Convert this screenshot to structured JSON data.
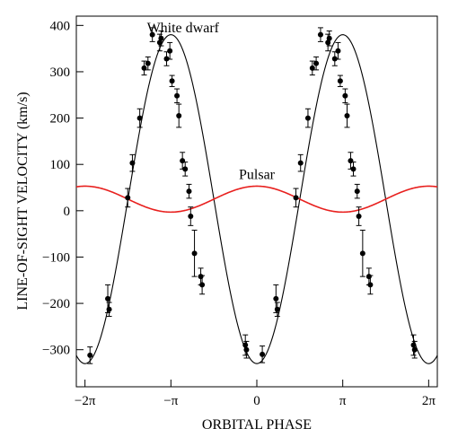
{
  "chart_data": {
    "type": "scatter",
    "xlabel": "ORBITAL PHASE",
    "ylabel": "LINE-OF-SIGHT VELOCITY (km/s)",
    "xlim": [
      -6.6,
      6.6
    ],
    "ylim": [
      -380,
      420
    ],
    "x_ticks": [
      {
        "value": -6.2832,
        "label": "−2π"
      },
      {
        "value": -3.1416,
        "label": "−π"
      },
      {
        "value": 0,
        "label": "0"
      },
      {
        "value": 3.1416,
        "label": "π"
      },
      {
        "value": 6.2832,
        "label": "2π"
      }
    ],
    "y_ticks": [
      -300,
      -200,
      -100,
      0,
      100,
      200,
      300,
      400
    ],
    "grid": false,
    "series": [
      {
        "name": "White dwarf",
        "kind": "curve",
        "color": "#000000",
        "mean": 25,
        "amplitude": 355,
        "peak_phase": -3.1416
      },
      {
        "name": "Pulsar",
        "kind": "curve",
        "color": "#e8201e",
        "mean": 25,
        "amplitude": 28,
        "peak_phase": 0
      },
      {
        "name": "White dwarf measurements",
        "kind": "points_with_errorbars",
        "color": "#000000",
        "points": [
          {
            "x": -6.1,
            "y": -312,
            "err": 18
          },
          {
            "x": -5.45,
            "y": -190,
            "err": 30
          },
          {
            "x": -5.4,
            "y": -213,
            "err": 15
          },
          {
            "x": -4.72,
            "y": 28,
            "err": 20
          },
          {
            "x": -4.55,
            "y": 103,
            "err": 18
          },
          {
            "x": -4.28,
            "y": 200,
            "err": 20
          },
          {
            "x": -4.12,
            "y": 308,
            "err": 15
          },
          {
            "x": -3.98,
            "y": 318,
            "err": 14
          },
          {
            "x": -3.82,
            "y": 380,
            "err": 15
          },
          {
            "x": -3.55,
            "y": 363,
            "err": 18
          },
          {
            "x": -3.5,
            "y": 372,
            "err": 16
          },
          {
            "x": -3.3,
            "y": 328,
            "err": 15
          },
          {
            "x": -3.18,
            "y": 345,
            "err": 18
          },
          {
            "x": -3.1,
            "y": 280,
            "err": 12
          },
          {
            "x": -2.92,
            "y": 248,
            "err": 15
          },
          {
            "x": -2.85,
            "y": 205,
            "err": 25
          },
          {
            "x": -2.72,
            "y": 108,
            "err": 18
          },
          {
            "x": -2.62,
            "y": 90,
            "err": 15
          },
          {
            "x": -2.48,
            "y": 42,
            "err": 15
          },
          {
            "x": -2.42,
            "y": -12,
            "err": 20
          },
          {
            "x": -2.28,
            "y": -92,
            "err": 50
          },
          {
            "x": -2.05,
            "y": -142,
            "err": 18
          },
          {
            "x": -2.0,
            "y": -160,
            "err": 20
          },
          {
            "x": -0.42,
            "y": -290,
            "err": 22
          },
          {
            "x": -0.38,
            "y": -300,
            "err": 18
          },
          {
            "x": 0.2,
            "y": -310,
            "err": 18
          },
          {
            "x": 0.7,
            "y": -190,
            "err": 30
          },
          {
            "x": 0.75,
            "y": -213,
            "err": 15
          },
          {
            "x": 1.43,
            "y": 28,
            "err": 20
          },
          {
            "x": 1.6,
            "y": 103,
            "err": 18
          },
          {
            "x": 1.87,
            "y": 200,
            "err": 20
          },
          {
            "x": 2.03,
            "y": 308,
            "err": 15
          },
          {
            "x": 2.17,
            "y": 318,
            "err": 14
          },
          {
            "x": 2.33,
            "y": 380,
            "err": 15
          },
          {
            "x": 2.6,
            "y": 363,
            "err": 18
          },
          {
            "x": 2.65,
            "y": 372,
            "err": 16
          },
          {
            "x": 2.85,
            "y": 328,
            "err": 15
          },
          {
            "x": 2.97,
            "y": 345,
            "err": 18
          },
          {
            "x": 3.05,
            "y": 280,
            "err": 12
          },
          {
            "x": 3.23,
            "y": 248,
            "err": 15
          },
          {
            "x": 3.3,
            "y": 205,
            "err": 25
          },
          {
            "x": 3.43,
            "y": 108,
            "err": 18
          },
          {
            "x": 3.53,
            "y": 90,
            "err": 15
          },
          {
            "x": 3.67,
            "y": 42,
            "err": 15
          },
          {
            "x": 3.73,
            "y": -12,
            "err": 20
          },
          {
            "x": 3.87,
            "y": -92,
            "err": 50
          },
          {
            "x": 4.1,
            "y": -142,
            "err": 18
          },
          {
            "x": 4.15,
            "y": -160,
            "err": 20
          },
          {
            "x": 5.73,
            "y": -290,
            "err": 22
          },
          {
            "x": 5.77,
            "y": -300,
            "err": 18
          }
        ]
      }
    ],
    "annotations": [
      {
        "text": "White dwarf",
        "x": -2.7,
        "y": 385,
        "color": "#000000"
      },
      {
        "text": "Pulsar",
        "x": 0,
        "y": 68,
        "color": "#e8201e"
      }
    ]
  }
}
